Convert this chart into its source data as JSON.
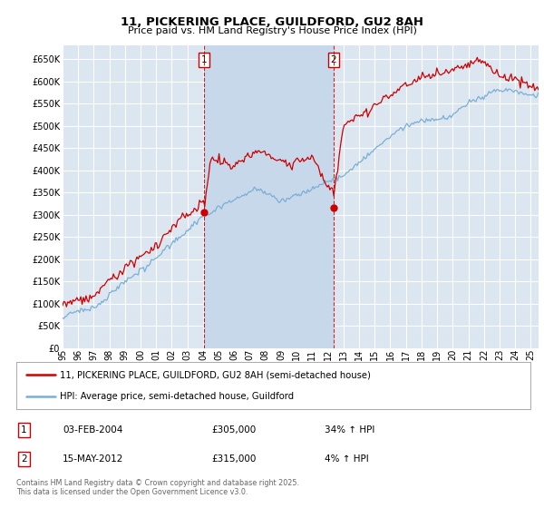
{
  "title": "11, PICKERING PLACE, GUILDFORD, GU2 8AH",
  "subtitle": "Price paid vs. HM Land Registry's House Price Index (HPI)",
  "ylim": [
    0,
    680000
  ],
  "yticks": [
    0,
    50000,
    100000,
    150000,
    200000,
    250000,
    300000,
    350000,
    400000,
    450000,
    500000,
    550000,
    600000,
    650000
  ],
  "xlim_start": 1995.0,
  "xlim_end": 2025.5,
  "background_color": "#ffffff",
  "plot_bg_color": "#dce6f1",
  "shade_color": "#c8d8eb",
  "grid_color": "#ffffff",
  "red_color": "#cc0000",
  "blue_color": "#7aafd4",
  "marker1_date": 2004.08,
  "marker1_price": 305000,
  "marker2_date": 2012.37,
  "marker2_price": 315000,
  "transaction1_date": "03-FEB-2004",
  "transaction1_price": "£305,000",
  "transaction1_hpi": "34% ↑ HPI",
  "transaction2_date": "15-MAY-2012",
  "transaction2_price": "£315,000",
  "transaction2_hpi": "4% ↑ HPI",
  "legend_line1": "11, PICKERING PLACE, GUILDFORD, GU2 8AH (semi-detached house)",
  "legend_line2": "HPI: Average price, semi-detached house, Guildford",
  "footnote": "Contains HM Land Registry data © Crown copyright and database right 2025.\nThis data is licensed under the Open Government Licence v3.0."
}
